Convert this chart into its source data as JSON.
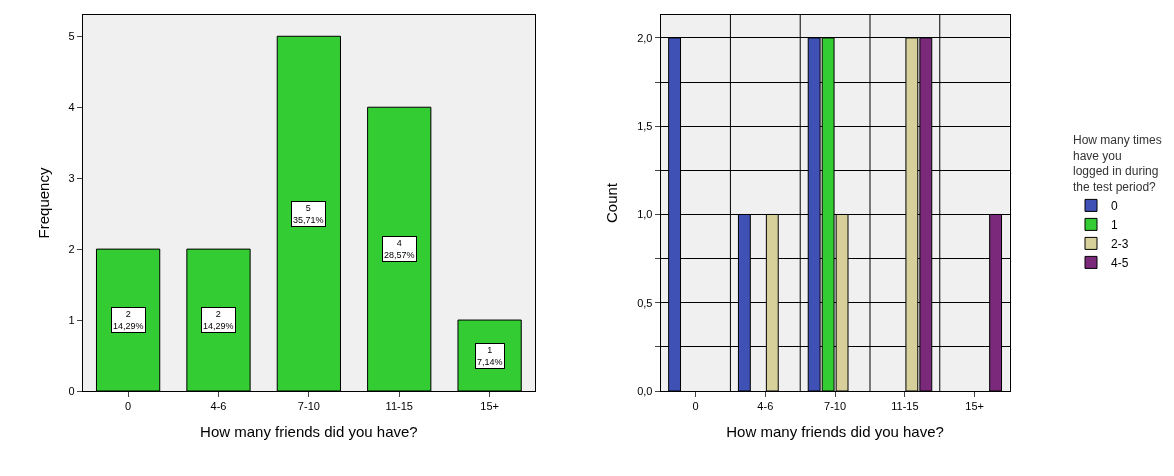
{
  "chart_data": [
    {
      "type": "bar",
      "xlabel": "How many friends did you have?",
      "ylabel": "Frequency",
      "categories": [
        "0",
        "4-6",
        "7-10",
        "11-15",
        "15+"
      ],
      "values": [
        2,
        2,
        5,
        4,
        1
      ],
      "color": "#33cc33",
      "value_labels": [
        "2\n14,29%",
        "2\n14,29%",
        "5\n35,71%",
        "4\n28,57%",
        "1\n7,14%"
      ],
      "ylim": [
        0,
        5.3
      ],
      "yticks": [
        0,
        1,
        2,
        3,
        4,
        5
      ],
      "grid": false,
      "legend": false
    },
    {
      "type": "bar",
      "xlabel": "How many friends did you have?",
      "ylabel": "Count",
      "legend_title": "How many times\nhave you\nlogged in during\nthe test period?",
      "categories": [
        "0",
        "4-6",
        "7-10",
        "11-15",
        "15+"
      ],
      "series": [
        {
          "name": "0",
          "color": "#3f51b5",
          "values": [
            2,
            1,
            2,
            null,
            null
          ]
        },
        {
          "name": "1",
          "color": "#33cc33",
          "values": [
            null,
            null,
            2,
            null,
            null
          ]
        },
        {
          "name": "2-3",
          "color": "#d8d09a",
          "values": [
            null,
            1,
            1,
            2,
            null
          ]
        },
        {
          "name": "4-5",
          "color": "#7b2a7b",
          "values": [
            null,
            null,
            null,
            2,
            1
          ]
        }
      ],
      "ylim": [
        0,
        2.13
      ],
      "yticks": [
        {
          "value": 0,
          "label": "0,0"
        },
        {
          "value": 0.25,
          "label": null
        },
        {
          "value": 0.5,
          "label": "0,5"
        },
        {
          "value": 0.75,
          "label": null
        },
        {
          "value": 1,
          "label": "1,0"
        },
        {
          "value": 1.25,
          "label": null
        },
        {
          "value": 1.5,
          "label": "1,5"
        },
        {
          "value": 1.75,
          "label": null
        },
        {
          "value": 2,
          "label": "2,0"
        }
      ],
      "grid": true,
      "legend": "right"
    }
  ]
}
